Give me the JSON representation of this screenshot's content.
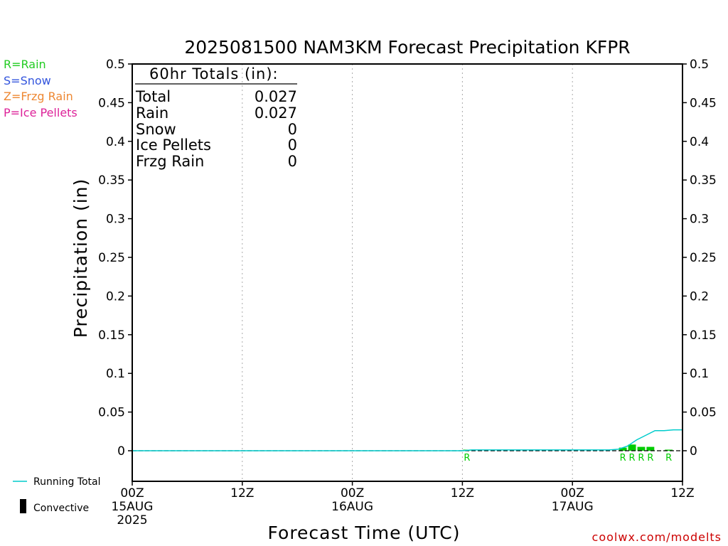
{
  "title": "2025081500 NAM3KM Forecast Precipitation KFPR",
  "type_legend": [
    {
      "text": "R=Rain",
      "color": "#22cc22"
    },
    {
      "text": "S=Snow",
      "color": "#3355dd"
    },
    {
      "text": "Z=Frzg Rain",
      "color": "#ee8833"
    },
    {
      "text": "P=Ice Pellets",
      "color": "#dd2299"
    }
  ],
  "totals": {
    "header": "60hr Totals (in):",
    "rows": [
      {
        "label": "Total",
        "value": "0.027"
      },
      {
        "label": "Rain",
        "value": "0.027"
      },
      {
        "label": "Snow",
        "value": "0"
      },
      {
        "label": "Ice Pellets",
        "value": "0"
      },
      {
        "label": "Frzg Rain",
        "value": "0"
      }
    ]
  },
  "bottom_legend": {
    "running_total": "Running Total",
    "convective": "Convective"
  },
  "credit": "coolwx.com/modelts",
  "colors": {
    "running_total": "#00cccc",
    "rain_bar": "#00cc00",
    "grid": "#aaaaaa"
  },
  "chart_data": {
    "type": "bar",
    "ylabel": "Precipitation (in)",
    "xlabel": "Forecast Time (UTC)",
    "ylim": [
      -0.04,
      0.5
    ],
    "xlim": [
      0,
      60
    ],
    "yticks": [
      {
        "v": 0.5,
        "t": "0.5"
      },
      {
        "v": 0.45,
        "t": "0.45"
      },
      {
        "v": 0.4,
        "t": "0.4"
      },
      {
        "v": 0.35,
        "t": "0.35"
      },
      {
        "v": 0.3,
        "t": "0.3"
      },
      {
        "v": 0.25,
        "t": "0.25"
      },
      {
        "v": 0.2,
        "t": "0.2"
      },
      {
        "v": 0.15,
        "t": "0.15"
      },
      {
        "v": 0.1,
        "t": "0.1"
      },
      {
        "v": 0.05,
        "t": "0.05"
      },
      {
        "v": 0,
        "t": "0"
      }
    ],
    "xticks": [
      {
        "h": 0,
        "lines": [
          "00Z",
          "15AUG",
          "2025"
        ]
      },
      {
        "h": 12,
        "lines": [
          "12Z"
        ]
      },
      {
        "h": 24,
        "lines": [
          "00Z",
          "16AUG"
        ]
      },
      {
        "h": 36,
        "lines": [
          "12Z"
        ]
      },
      {
        "h": 48,
        "lines": [
          "00Z",
          "17AUG"
        ]
      },
      {
        "h": 60,
        "lines": [
          "12Z"
        ]
      }
    ],
    "grid": "dotted vertical",
    "rain_bars": [
      {
        "h": 37,
        "v": 0.001
      },
      {
        "h": 54,
        "v": 0.004
      },
      {
        "h": 55,
        "v": 0.008
      },
      {
        "h": 56,
        "v": 0.005
      },
      {
        "h": 57,
        "v": 0.005
      },
      {
        "h": 59,
        "v": 0.001
      }
    ],
    "ptype_labels": [
      {
        "h": 37,
        "t": "R"
      },
      {
        "h": 54,
        "t": "R"
      },
      {
        "h": 55,
        "t": "R"
      },
      {
        "h": 56,
        "t": "R"
      },
      {
        "h": 57,
        "t": "R"
      },
      {
        "h": 59,
        "t": "R"
      }
    ],
    "running_total": {
      "x": [
        0,
        36,
        37,
        52,
        53,
        54,
        55,
        56,
        57,
        58,
        59,
        60
      ],
      "y": [
        0,
        0,
        0.001,
        0.001,
        0.002,
        0.006,
        0.014,
        0.02,
        0.026,
        0.026,
        0.027,
        0.027
      ]
    }
  }
}
